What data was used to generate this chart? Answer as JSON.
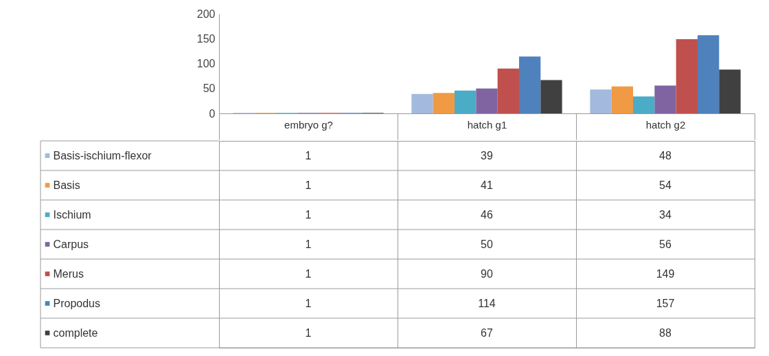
{
  "chart_data": {
    "type": "bar",
    "categories": [
      "embryo g?",
      "hatch g1",
      "hatch g2"
    ],
    "series": [
      {
        "name": "Basis-ischium-flexor",
        "color": "#a3b9de",
        "values": [
          1,
          39,
          48
        ]
      },
      {
        "name": "Basis",
        "color": "#f09a45",
        "values": [
          1,
          41,
          54
        ]
      },
      {
        "name": "Ischium",
        "color": "#4bacc6",
        "values": [
          1,
          46,
          34
        ]
      },
      {
        "name": "Carpus",
        "color": "#8064a2",
        "values": [
          1,
          50,
          56
        ]
      },
      {
        "name": "Merus",
        "color": "#c0504d",
        "values": [
          1,
          90,
          149
        ]
      },
      {
        "name": "Propodus",
        "color": "#4f81bd",
        "values": [
          1,
          114,
          157
        ]
      },
      {
        "name": "complete",
        "color": "#404040",
        "values": [
          1,
          67,
          88
        ]
      }
    ],
    "ylim": [
      0,
      200
    ],
    "yticks": [
      0,
      50,
      100,
      150,
      200
    ],
    "grid": false,
    "legend": "left",
    "data_labels": true
  }
}
